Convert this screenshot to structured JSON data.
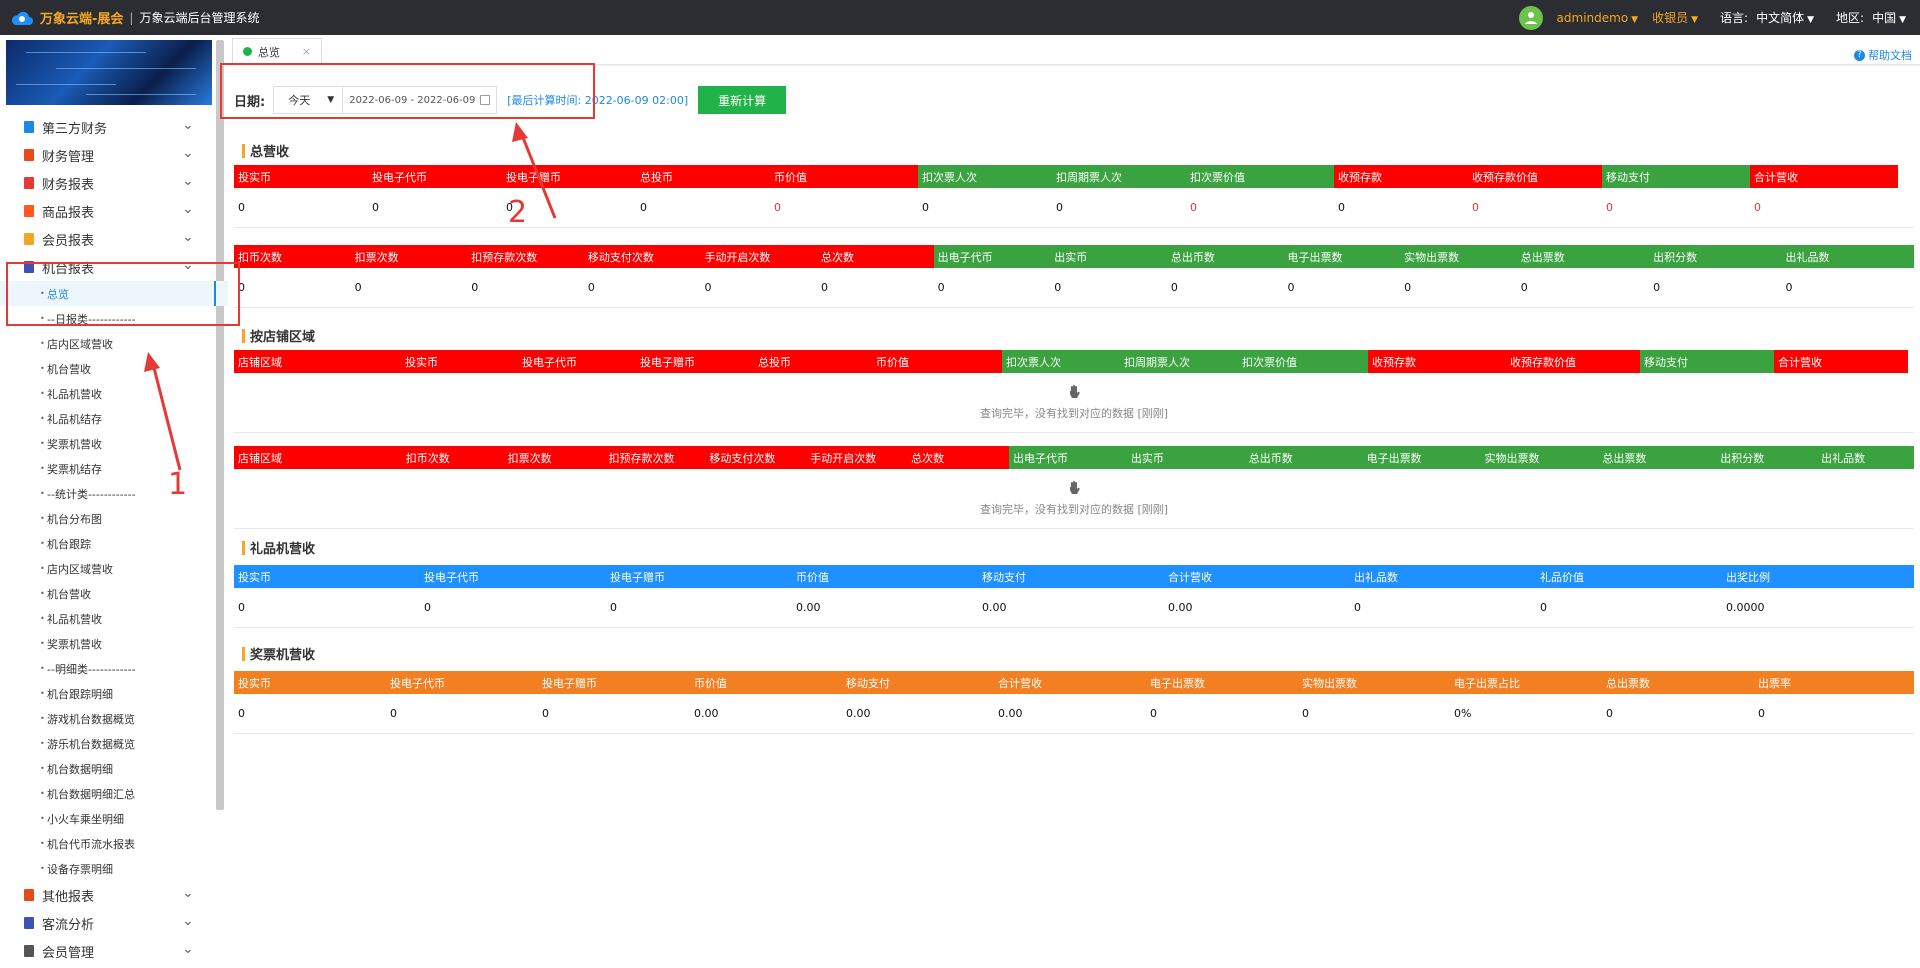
{
  "app": {
    "brand": "万象云端-展会",
    "sep": "|",
    "system_title": "万象云端后台管理系统"
  },
  "top": {
    "username": "admindemo",
    "role": "收银员",
    "lang_label": "语言:",
    "lang_value": "中文简体",
    "region_label": "地区:",
    "region_value": "中国"
  },
  "menu": {
    "top_items": [
      {
        "label": "第三方财务",
        "color": "#1e88e5"
      },
      {
        "label": "财务管理",
        "color": "#e64a19"
      },
      {
        "label": "财务报表",
        "color": "#e53935"
      },
      {
        "label": "商品报表",
        "color": "#ff5722"
      },
      {
        "label": "会员报表",
        "color": "#f5a623"
      },
      {
        "label": "机台报表",
        "color": "#3f51b5"
      }
    ],
    "sub_items": [
      "总览",
      "--日报类------------",
      "店内区域营收",
      "机台营收",
      "礼品机营收",
      "礼品机结存",
      "奖票机营收",
      "奖票机结存",
      "--统计类------------",
      "机台分布图",
      "机台跟踪",
      "店内区域营收",
      "机台营收",
      "礼品机营收",
      "奖票机营收",
      "--明细类------------",
      "机台跟踪明细",
      "游戏机台数据概览",
      "游乐机台数据概览",
      "机台数据明细",
      "机台数据明细汇总",
      "小火车乘坐明细",
      "机台代币流水报表",
      "设备存票明细"
    ],
    "bottom_items": [
      {
        "label": "其他报表",
        "color": "#e64a19"
      },
      {
        "label": "客流分析",
        "color": "#3f51b5"
      },
      {
        "label": "会员管理",
        "color": "#555555"
      }
    ]
  },
  "tab": {
    "label": "总览",
    "close": "×"
  },
  "help": {
    "label": "帮助文档"
  },
  "filter": {
    "label": "日期:",
    "period": "今天",
    "date_range": "2022-06-09 - 2022-06-09",
    "last_calc": "[最后计算时间: 2022-06-09 02:00]",
    "recalc_button": "重新计算"
  },
  "annotations": {
    "one": "1",
    "two": "2"
  },
  "sections": {
    "total": {
      "title": "总营收",
      "t1_headers": [
        "投实币",
        "投电子代币",
        "投电子赠币",
        "总投币",
        "币价值",
        "扣次票人次",
        "扣周期票人次",
        "扣次票价值",
        "收预存款",
        "收预存款价值",
        "移动支付",
        "合计营收"
      ],
      "t1_values": [
        "0",
        "0",
        "0",
        "0",
        "0",
        "0",
        "0",
        "0",
        "0",
        "0",
        "0",
        "0"
      ],
      "t2_headers": [
        "扣币次数",
        "扣票次数",
        "扣预存款次数",
        "移动支付次数",
        "手动开启次数",
        "总次数",
        "出电子代币",
        "出实币",
        "总出币数",
        "电子出票数",
        "实物出票数",
        "总出票数",
        "出积分数",
        "出礼品数"
      ],
      "t2_values": [
        "0",
        "0",
        "0",
        "0",
        "0",
        "0",
        "0",
        "0",
        "0",
        "0",
        "0",
        "0",
        "0",
        "0"
      ]
    },
    "store": {
      "title": "按店铺区域",
      "t1_headers": [
        "店铺区域",
        "投实币",
        "投电子代币",
        "投电子赠币",
        "总投币",
        "币价值",
        "扣次票人次",
        "扣周期票人次",
        "扣次票价值",
        "收预存款",
        "收预存款价值",
        "移动支付",
        "合计营收"
      ],
      "t2_headers": [
        "店铺区域",
        "扣币次数",
        "扣票次数",
        "扣预存款次数",
        "移动支付次数",
        "手动开启次数",
        "总次数",
        "出电子代币",
        "出实币",
        "总出币数",
        "电子出票数",
        "实物出票数",
        "总出票数",
        "出积分数",
        "出礼品数"
      ],
      "empty_msg": "查询完毕，没有找到对应的数据 [刚刚]"
    },
    "gift": {
      "title": "礼品机营收",
      "headers": [
        "投实币",
        "投电子代币",
        "投电子赠币",
        "币价值",
        "移动支付",
        "合计营收",
        "出礼品数",
        "礼品价值",
        "出奖比例"
      ],
      "values": [
        "0",
        "0",
        "0",
        "0.00",
        "0.00",
        "0.00",
        "0",
        "0",
        "0.0000"
      ]
    },
    "ticket": {
      "title": "奖票机营收",
      "headers": [
        "投实币",
        "投电子代币",
        "投电子赠币",
        "币价值",
        "移动支付",
        "合计营收",
        "电子出票数",
        "实物出票数",
        "电子出票占比",
        "总出票数",
        "出票率"
      ],
      "values": [
        "0",
        "0",
        "0",
        "0.00",
        "0.00",
        "0.00",
        "0",
        "0",
        "0%",
        "0",
        "0"
      ]
    }
  }
}
